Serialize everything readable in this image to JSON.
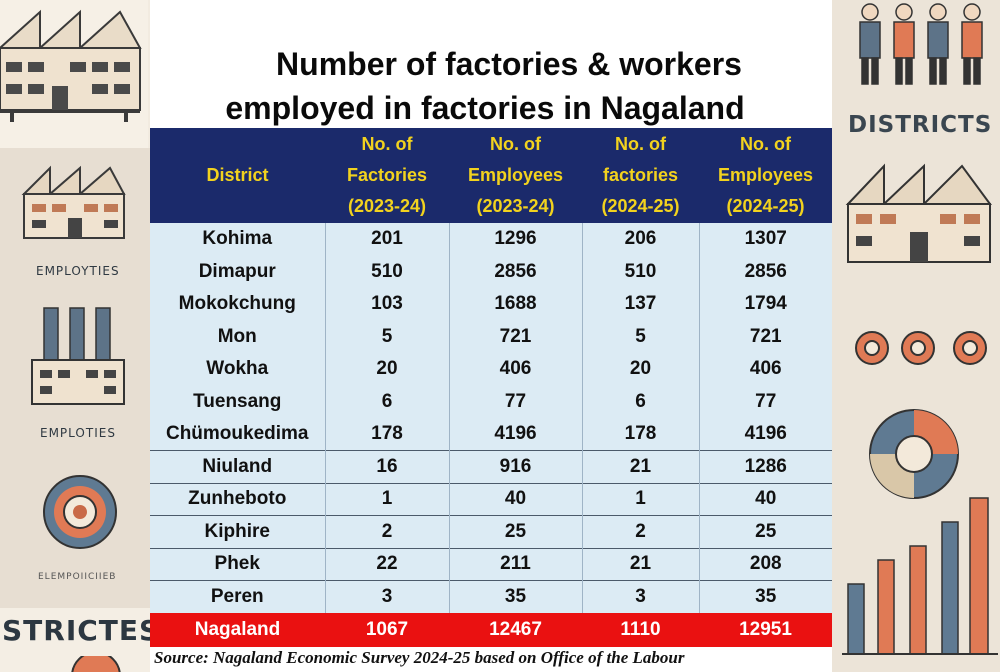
{
  "title_line1": "Number of factories & workers",
  "title_line2": "employed in factories in Nagaland",
  "table": {
    "headers": [
      "District",
      "No. of Factories (2023-24)",
      "No. of Employees (2023-24)",
      "No. of factories (2024-25)",
      "No. of Employees (2024-25)"
    ],
    "rows": [
      {
        "district": "Kohima",
        "factories_2324": "201",
        "employees_2324": "1296",
        "factories_2425": "206",
        "employees_2425": "1307"
      },
      {
        "district": "Dimapur",
        "factories_2324": "510",
        "employees_2324": "2856",
        "factories_2425": "510",
        "employees_2425": "2856"
      },
      {
        "district": "Mokokchung",
        "factories_2324": "103",
        "employees_2324": "1688",
        "factories_2425": "137",
        "employees_2425": "1794"
      },
      {
        "district": "Mon",
        "factories_2324": "5",
        "employees_2324": "721",
        "factories_2425": "5",
        "employees_2425": "721"
      },
      {
        "district": "Wokha",
        "factories_2324": "20",
        "employees_2324": "406",
        "factories_2425": "20",
        "employees_2425": "406"
      },
      {
        "district": "Tuensang",
        "factories_2324": "6",
        "employees_2324": "77",
        "factories_2425": "6",
        "employees_2425": "77"
      },
      {
        "district": "Chümoukedima",
        "factories_2324": "178",
        "employees_2324": "4196",
        "factories_2425": "178",
        "employees_2425": "4196"
      },
      {
        "district": "Niuland",
        "factories_2324": "16",
        "employees_2324": "916",
        "factories_2425": "21",
        "employees_2425": "1286"
      },
      {
        "district": "Zunheboto",
        "factories_2324": "1",
        "employees_2324": "40",
        "factories_2425": "1",
        "employees_2425": "40"
      },
      {
        "district": "Kiphire",
        "factories_2324": "2",
        "employees_2324": "25",
        "factories_2425": "2",
        "employees_2425": "25"
      },
      {
        "district": "Phek",
        "factories_2324": "22",
        "employees_2324": "211",
        "factories_2425": "21",
        "employees_2425": "208"
      },
      {
        "district": "Peren",
        "factories_2324": "3",
        "employees_2324": "35",
        "factories_2425": "3",
        "employees_2425": "35"
      }
    ],
    "total": {
      "district": "Nagaland",
      "factories_2324": "1067",
      "employees_2324": "12467",
      "factories_2425": "1110",
      "employees_2425": "12951"
    }
  },
  "source": "Source: Nagaland Economic Survey 2024-25 based on Office of the Labour",
  "decor": {
    "districts_label": "DISTRICTS",
    "stricts_label": "STRICTES",
    "employees_label_1": "EMPLOYTIES",
    "employees_label_2": "EMPLOTIES",
    "employees_label_3": "ELEMPOIICIIEB"
  },
  "colors": {
    "header_bg": "#1b2a6b",
    "header_text": "#f2d21e",
    "row_bg": "#dcebf4",
    "total_bg": "#ea1111"
  }
}
